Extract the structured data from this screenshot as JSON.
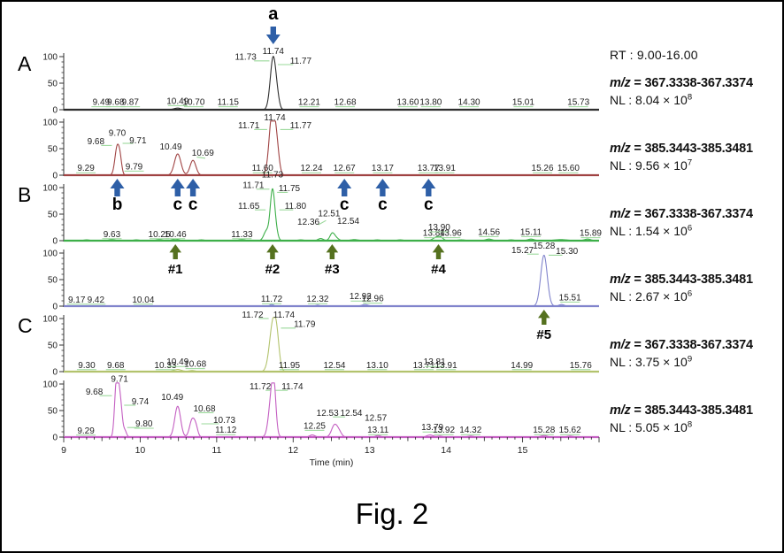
{
  "figure": {
    "caption": "Fig. 2"
  },
  "traces": [
    {
      "rt_label": "RT : 9.00-16.00",
      "mz_prefix": "m/z",
      "mz_value": " = 367.3338-367.3374",
      "nl_base": "NL : 8.04 × 10",
      "nl_exp": "8"
    },
    {
      "mz_prefix": "m/z",
      "mz_value": " = 385.3443-385.3481",
      "nl_base": "NL : 9.56 × 10",
      "nl_exp": "7"
    },
    {
      "mz_prefix": "m/z",
      "mz_value": " = 367.3338-367.3374",
      "nl_base": "NL : 1.54 × 10",
      "nl_exp": "6"
    },
    {
      "mz_prefix": "m/z",
      "mz_value": " = 385.3443-385.3481",
      "nl_base": "NL : 2.67 × 10",
      "nl_exp": "6"
    },
    {
      "mz_prefix": "m/z",
      "mz_value": " = 367.3338-367.3374",
      "nl_base": "NL : 3.75 × 10",
      "nl_exp": "9"
    },
    {
      "mz_prefix": "m/z",
      "mz_value": " = 385.3443-385.3481",
      "nl_base": "NL : 5.05 × 10",
      "nl_exp": "8"
    }
  ],
  "chart_data": {
    "type": "line",
    "xlabel": "Time (min)",
    "x_range": [
      9,
      16
    ],
    "y_range": [
      0,
      100
    ],
    "x_ticks": [
      9,
      10,
      11,
      12,
      13,
      14,
      15
    ],
    "y_ticks": [
      0,
      50,
      100
    ],
    "colors": {
      "leader": "#9ad89a",
      "arrow_blue": "#2e5fa7",
      "arrow_green": "#55711f",
      "axis": "#333333",
      "label_text": "#222222"
    },
    "panels": [
      {
        "label": "A",
        "row": 0
      },
      {
        "label": "B",
        "row": 2
      },
      {
        "label": "C",
        "row": 4
      }
    ],
    "traces": [
      {
        "name": "A m/z 367",
        "color": "#2e2e2e",
        "mz_window": "367.3338-367.3374",
        "nl": "8.04 × 10^8",
        "peaks": [
          [
            10.49,
            3,
            0.12
          ],
          [
            11.74,
            100,
            0.09
          ],
          [
            11.8,
            9,
            0.06
          ]
        ],
        "labels": [
          [
            9.49,
            9,
            "9.49"
          ],
          [
            9.68,
            9,
            "9.68"
          ],
          [
            9.87,
            9,
            "9.87"
          ],
          [
            10.49,
            11,
            "10.49"
          ],
          [
            10.7,
            9,
            "10.70"
          ],
          [
            11.15,
            9,
            "11.15"
          ],
          [
            11.38,
            94,
            "11.73"
          ],
          [
            11.74,
            105,
            "11.74"
          ],
          [
            12.1,
            87,
            "11.77"
          ],
          [
            12.21,
            9,
            "12.21"
          ],
          [
            12.68,
            9,
            "12.68"
          ],
          [
            13.5,
            9,
            "13.60"
          ],
          [
            13.8,
            9,
            "13.80"
          ],
          [
            14.3,
            9,
            "14.30"
          ],
          [
            15.01,
            9,
            "15.01"
          ],
          [
            15.73,
            9,
            "15.73"
          ]
        ],
        "leaders": [
          [
            11.49,
            92,
            11.69,
            92
          ],
          [
            11.8,
            85,
            12.0,
            85
          ]
        ]
      },
      {
        "name": "A m/z 385",
        "color": "#a04343",
        "mz_window": "385.3443-385.3481",
        "nl": "9.56 × 10^7",
        "peaks": [
          [
            9.7,
            54,
            0.07
          ],
          [
            9.74,
            20,
            0.05
          ],
          [
            10.49,
            40,
            0.1
          ],
          [
            10.69,
            28,
            0.09
          ],
          [
            11.71,
            35,
            0.08
          ],
          [
            11.74,
            95,
            0.1
          ],
          [
            11.79,
            25,
            0.07
          ]
        ],
        "labels": [
          [
            9.29,
            8,
            "9.29"
          ],
          [
            9.42,
            58,
            "9.68"
          ],
          [
            9.7,
            74,
            "9.70"
          ],
          [
            9.97,
            60,
            "9.71"
          ],
          [
            9.92,
            11,
            "9.79"
          ],
          [
            10.4,
            48,
            "10.49"
          ],
          [
            10.82,
            37,
            "10.69"
          ],
          [
            11.42,
            88,
            "11.71"
          ],
          [
            11.76,
            103,
            "11.74"
          ],
          [
            12.1,
            88,
            "11.77"
          ],
          [
            11.6,
            8,
            "11.60"
          ],
          [
            12.24,
            8,
            "12.24"
          ],
          [
            12.67,
            8,
            "12.67"
          ],
          [
            13.17,
            8,
            "13.17"
          ],
          [
            13.77,
            8,
            "13.77"
          ],
          [
            13.98,
            8,
            "13.91"
          ],
          [
            15.26,
            8,
            "15.26"
          ],
          [
            15.6,
            8,
            "15.60"
          ]
        ],
        "leaders": [
          [
            9.49,
            56,
            9.63,
            56
          ],
          [
            9.77,
            60,
            9.91,
            60
          ],
          [
            10.74,
            34,
            10.85,
            32
          ],
          [
            11.49,
            86,
            11.66,
            86
          ],
          [
            11.83,
            86,
            12.0,
            86
          ]
        ]
      },
      {
        "name": "B m/z 367",
        "color": "#3daf49",
        "mz_window": "367.3338-367.3374",
        "nl": "1.54 × 10^6",
        "peaks": [
          [
            9.3,
            1.5,
            0.1
          ],
          [
            9.63,
            2,
            0.1
          ],
          [
            9.95,
            1.5,
            0.1
          ],
          [
            10.25,
            2,
            0.1
          ],
          [
            10.46,
            3,
            0.1
          ],
          [
            10.8,
            1.5,
            0.1
          ],
          [
            11.33,
            2,
            0.1
          ],
          [
            11.65,
            18,
            0.08
          ],
          [
            11.73,
            95,
            0.07
          ],
          [
            11.78,
            12,
            0.06
          ],
          [
            12.1,
            1.5,
            0.1
          ],
          [
            12.36,
            4,
            0.08
          ],
          [
            12.51,
            13,
            0.07
          ],
          [
            12.56,
            5,
            0.08
          ],
          [
            12.8,
            2,
            0.12
          ],
          [
            13.1,
            1.5,
            0.1
          ],
          [
            13.4,
            1.5,
            0.1
          ],
          [
            13.87,
            6,
            0.1
          ],
          [
            13.93,
            5,
            0.08
          ],
          [
            14.2,
            1.5,
            0.12
          ],
          [
            14.56,
            3,
            0.1
          ],
          [
            14.85,
            1.5,
            0.1
          ],
          [
            15.11,
            3,
            0.1
          ],
          [
            15.5,
            2,
            0.2
          ],
          [
            15.85,
            3,
            0.1
          ]
        ],
        "labels": [
          [
            9.63,
            7,
            "9.63"
          ],
          [
            10.25,
            7,
            "10.25"
          ],
          [
            10.46,
            7,
            "10.46"
          ],
          [
            11.33,
            7,
            "11.33"
          ],
          [
            11.48,
            99,
            "11.71"
          ],
          [
            11.73,
            119,
            "11.73"
          ],
          [
            11.95,
            93,
            "11.75"
          ],
          [
            11.42,
            60,
            "11.65"
          ],
          [
            12.03,
            60,
            "11.80"
          ],
          [
            12.2,
            30,
            "12.36"
          ],
          [
            12.47,
            46,
            "12.51"
          ],
          [
            12.72,
            32,
            "12.54"
          ],
          [
            13.84,
            9,
            "13.84"
          ],
          [
            13.91,
            20,
            "13.90"
          ],
          [
            14.06,
            9,
            "13.96"
          ],
          [
            14.56,
            11,
            "14.56"
          ],
          [
            15.11,
            11,
            "15.11"
          ],
          [
            15.89,
            9,
            "15.89"
          ]
        ],
        "leaders": [
          [
            11.52,
            97,
            11.69,
            97
          ],
          [
            11.79,
            91,
            11.93,
            91
          ],
          [
            11.5,
            58,
            11.64,
            58
          ],
          [
            11.82,
            58,
            12.0,
            58
          ],
          [
            12.33,
            30,
            12.43,
            38
          ]
        ]
      },
      {
        "name": "B m/z 385",
        "color": "#8184cc",
        "mz_window": "385.3443-385.3481",
        "nl": "2.67 × 10^6",
        "peaks": [
          [
            11.72,
            3,
            0.06
          ],
          [
            12.32,
            2,
            0.06
          ],
          [
            12.94,
            3,
            0.1
          ],
          [
            15.28,
            96,
            0.1
          ],
          [
            15.51,
            3,
            0.08
          ]
        ],
        "labels": [
          [
            9.17,
            7,
            "9.17"
          ],
          [
            9.42,
            7,
            "9.42"
          ],
          [
            10.04,
            7,
            "10.04"
          ],
          [
            11.72,
            8,
            "11.72"
          ],
          [
            12.32,
            8,
            "12.32"
          ],
          [
            12.88,
            13,
            "12.92"
          ],
          [
            13.04,
            9,
            "12.96"
          ],
          [
            15.0,
            100,
            "15.27"
          ],
          [
            15.28,
            108,
            "15.28"
          ],
          [
            15.58,
            98,
            "15.30"
          ],
          [
            15.62,
            11,
            "15.51"
          ]
        ],
        "leaders": [
          [
            15.06,
            98,
            15.21,
            98
          ],
          [
            15.34,
            96,
            15.52,
            96
          ]
        ]
      },
      {
        "name": "C m/z 367",
        "color": "#b3c36d",
        "mz_window": "367.3338-367.3374",
        "nl": "3.75 × 10^9",
        "peaks": [
          [
            10.49,
            4,
            0.12
          ],
          [
            10.68,
            2,
            0.1
          ],
          [
            11.74,
            96,
            0.11
          ],
          [
            11.79,
            30,
            0.07
          ]
        ],
        "labels": [
          [
            9.3,
            7,
            "9.30"
          ],
          [
            9.68,
            7,
            "9.68"
          ],
          [
            10.33,
            7,
            "10.33"
          ],
          [
            10.49,
            13,
            "10.49"
          ],
          [
            10.72,
            9,
            "10.68"
          ],
          [
            11.95,
            7,
            "11.95"
          ],
          [
            12.54,
            7,
            "12.54"
          ],
          [
            13.1,
            7,
            "13.10"
          ],
          [
            13.71,
            7,
            "13.71"
          ],
          [
            13.85,
            13,
            "13.81"
          ],
          [
            14.0,
            7,
            "13.91"
          ],
          [
            14.99,
            7,
            "14.99"
          ],
          [
            15.76,
            7,
            "15.76"
          ],
          [
            11.47,
            102,
            "11.72"
          ],
          [
            11.88,
            102,
            "11.74"
          ],
          [
            12.15,
            84,
            "11.79"
          ]
        ],
        "leaders": [
          [
            11.55,
            100,
            11.68,
            100
          ],
          [
            11.84,
            82,
            12.03,
            82
          ]
        ]
      },
      {
        "name": "C m/z 385",
        "color": "#c45fc2",
        "mz_window": "385.3443-385.3481",
        "nl": "5.05 × 10^8",
        "peaks": [
          [
            9.68,
            55,
            0.05
          ],
          [
            9.71,
            88,
            0.06
          ],
          [
            9.75,
            40,
            0.05
          ],
          [
            9.8,
            12,
            0.05
          ],
          [
            10.49,
            58,
            0.09
          ],
          [
            10.68,
            33,
            0.08
          ],
          [
            10.73,
            15,
            0.06
          ],
          [
            11.72,
            78,
            0.09
          ],
          [
            11.75,
            55,
            0.06
          ],
          [
            12.25,
            4,
            0.08
          ],
          [
            12.54,
            22,
            0.09
          ],
          [
            12.6,
            9,
            0.08
          ],
          [
            13.11,
            3,
            0.08
          ],
          [
            13.79,
            4,
            0.1
          ],
          [
            13.92,
            2,
            0.08
          ],
          [
            14.32,
            2,
            0.1
          ],
          [
            15.28,
            3,
            0.1
          ],
          [
            15.62,
            2,
            0.1
          ]
        ],
        "labels": [
          [
            9.29,
            7,
            "9.29"
          ],
          [
            9.4,
            80,
            "9.68"
          ],
          [
            9.73,
            104,
            "9.71"
          ],
          [
            10.0,
            62,
            "9.74"
          ],
          [
            10.05,
            20,
            "9.80"
          ],
          [
            10.42,
            70,
            "10.49"
          ],
          [
            10.84,
            48,
            "10.68"
          ],
          [
            11.1,
            27,
            "10.73"
          ],
          [
            11.12,
            8,
            "11.12"
          ],
          [
            11.57,
            90,
            "11.72"
          ],
          [
            11.99,
            90,
            "11.74"
          ],
          [
            12.28,
            16,
            "12.25"
          ],
          [
            12.45,
            40,
            "12.53"
          ],
          [
            12.76,
            40,
            "12.54"
          ],
          [
            13.08,
            31,
            "12.57"
          ],
          [
            13.11,
            8,
            "13.11"
          ],
          [
            13.82,
            13,
            "13.79"
          ],
          [
            13.97,
            8,
            "13.92"
          ],
          [
            14.32,
            8,
            "14.32"
          ],
          [
            15.28,
            8,
            "15.28"
          ],
          [
            15.62,
            8,
            "15.62"
          ]
        ],
        "leaders": [
          [
            9.47,
            78,
            9.63,
            78
          ],
          [
            9.79,
            60,
            9.94,
            60
          ],
          [
            9.83,
            18,
            9.99,
            18
          ],
          [
            10.76,
            46,
            10.96,
            46
          ],
          [
            10.8,
            25,
            11.03,
            25
          ],
          [
            11.64,
            88,
            11.7,
            88
          ],
          [
            11.77,
            88,
            11.93,
            88
          ],
          [
            12.52,
            38,
            12.68,
            38
          ]
        ]
      }
    ],
    "arrows": [
      {
        "label": "a",
        "t": 11.74,
        "dir": "down",
        "color": "blue",
        "row": 0
      },
      {
        "label": "b",
        "t": 9.7,
        "dir": "up",
        "color": "blue",
        "row": 1
      },
      {
        "label": "c",
        "t": 10.49,
        "dir": "up",
        "color": "blue",
        "row": 1
      },
      {
        "label": "c",
        "t": 10.69,
        "dir": "up",
        "color": "blue",
        "row": 1
      },
      {
        "label": "c",
        "t": 12.67,
        "dir": "up",
        "color": "blue",
        "row": 1
      },
      {
        "label": "c",
        "t": 13.17,
        "dir": "up",
        "color": "blue",
        "row": 1
      },
      {
        "label": "c",
        "t": 13.77,
        "dir": "up",
        "color": "blue",
        "row": 1
      },
      {
        "label": "#1",
        "t": 10.46,
        "dir": "up",
        "color": "green",
        "row": 2
      },
      {
        "label": "#2",
        "t": 11.73,
        "dir": "up",
        "color": "green",
        "row": 2
      },
      {
        "label": "#3",
        "t": 12.51,
        "dir": "up",
        "color": "green",
        "row": 2
      },
      {
        "label": "#4",
        "t": 13.9,
        "dir": "up",
        "color": "green",
        "row": 2
      },
      {
        "label": "#5",
        "t": 15.28,
        "dir": "up",
        "color": "green",
        "row": 3
      }
    ]
  }
}
